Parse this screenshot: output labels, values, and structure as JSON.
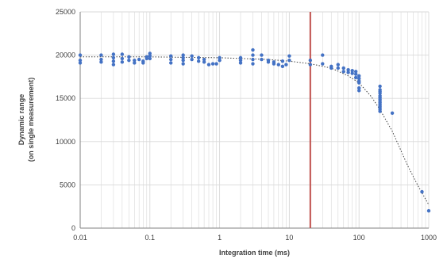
{
  "chart_data": {
    "type": "scatter",
    "title": "",
    "xlabel": "Integration time (ms)",
    "ylabel_lines": [
      "Dynamic range",
      "(on single measurement)"
    ],
    "xscale": "log",
    "xlim": [
      0.01,
      1000
    ],
    "ylim": [
      0,
      25000
    ],
    "grid": true,
    "x_ticks": [
      0.01,
      0.1,
      1,
      10,
      100,
      1000
    ],
    "x_tick_labels": [
      "0.01",
      "0.1",
      "1",
      "10",
      "100",
      "1000"
    ],
    "y_ticks": [
      0,
      5000,
      10000,
      15000,
      20000,
      25000
    ],
    "y_tick_labels": [
      "0",
      "5000",
      "10000",
      "15000",
      "20000",
      "25000"
    ],
    "colors": {
      "points": "#4472c4",
      "vline": "#c0504d",
      "trend": "#404040",
      "grid": "#d9d9d9"
    },
    "vertical_line_x": 20,
    "series": [
      {
        "x": [
          0.01,
          0.01,
          0.01,
          0.02,
          0.02,
          0.02,
          0.03,
          0.03,
          0.03,
          0.03,
          0.04,
          0.04,
          0.04,
          0.05,
          0.05,
          0.06,
          0.06,
          0.07,
          0.08,
          0.08,
          0.09,
          0.09,
          0.1,
          0.1,
          0.1,
          0.2,
          0.2,
          0.2,
          0.3,
          0.3,
          0.3,
          0.3,
          0.4,
          0.4,
          0.5,
          0.5,
          0.6,
          0.6,
          0.7,
          0.8,
          0.9,
          1,
          1,
          2,
          2,
          2,
          3,
          3,
          3,
          3,
          4,
          4,
          5,
          5,
          6,
          6,
          7,
          8,
          8,
          9,
          10,
          10,
          20,
          20,
          30,
          30,
          40,
          40,
          50,
          50,
          60,
          60,
          70,
          70,
          80,
          80,
          90,
          90,
          90,
          100,
          100,
          100,
          100,
          100,
          100,
          200,
          200,
          200,
          200,
          200,
          200,
          200,
          200,
          200,
          200,
          200,
          200,
          200,
          200,
          300,
          800,
          1000
        ],
        "y": [
          20000,
          19400,
          19100,
          20000,
          19500,
          19200,
          20100,
          19700,
          19300,
          18900,
          20100,
          19600,
          19200,
          19800,
          19400,
          19400,
          19100,
          19500,
          19300,
          19100,
          19800,
          19600,
          20200,
          19900,
          19600,
          19900,
          19500,
          19100,
          20000,
          19700,
          19400,
          19000,
          19900,
          19500,
          19700,
          19300,
          19500,
          19200,
          18900,
          19000,
          19000,
          19700,
          19400,
          19700,
          19400,
          19100,
          20600,
          20000,
          19500,
          19000,
          20000,
          19500,
          19400,
          19200,
          19200,
          19000,
          18900,
          19300,
          18700,
          18900,
          19900,
          19400,
          19400,
          18900,
          20000,
          19000,
          18700,
          18500,
          18900,
          18500,
          18500,
          18100,
          18300,
          18000,
          18200,
          17900,
          18100,
          17800,
          17400,
          17600,
          17300,
          17000,
          16800,
          16200,
          15900,
          16400,
          16000,
          15800,
          15600,
          15300,
          15100,
          14900,
          14700,
          14500,
          14300,
          14100,
          13900,
          13700,
          13500,
          13300,
          4200,
          2000
        ]
      }
    ],
    "trendline": {
      "x": [
        0.01,
        0.1,
        1,
        5,
        10,
        20,
        40,
        70,
        100,
        150,
        200,
        300,
        500,
        700,
        1000
      ],
      "y": [
        19800,
        19800,
        19700,
        19500,
        19300,
        19000,
        18500,
        17600,
        16800,
        15200,
        13700,
        11200,
        7200,
        4900,
        2700
      ]
    }
  }
}
